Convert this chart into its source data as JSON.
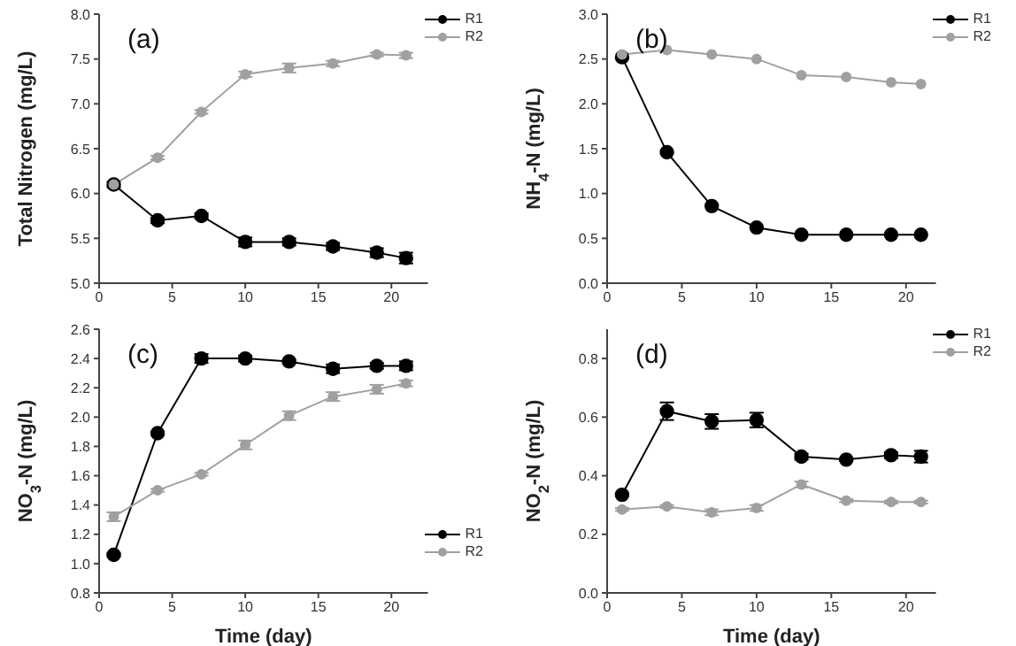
{
  "chart_data": [
    {
      "type": "line",
      "ylabel": "Total Nitrogen (mg/L)",
      "annotations": [
        "(a)"
      ],
      "x": [
        1,
        4,
        7,
        10,
        13,
        16,
        19,
        21
      ],
      "xlim": [
        0,
        22.5
      ],
      "xticks": [
        0,
        5,
        10,
        15,
        20
      ],
      "ylim": [
        5,
        8
      ],
      "yticks": [
        {
          "value": 5,
          "label": "5.0"
        },
        {
          "value": 5.5,
          "label": "5.5"
        },
        {
          "value": 6,
          "label": "6.0"
        },
        {
          "value": 6.5,
          "label": "6.5"
        },
        {
          "value": 7,
          "label": "7.0"
        },
        {
          "value": 7.5,
          "label": "7.5"
        },
        {
          "value": 8,
          "label": "8.0"
        }
      ],
      "legend": "top right",
      "marker": "circle",
      "series": [
        {
          "name": "R1",
          "color": "#000000",
          "values": [
            6.1,
            5.7,
            5.75,
            5.46,
            5.46,
            5.41,
            5.34,
            5.28
          ],
          "errors": [
            0.03,
            0.03,
            0.03,
            0.05,
            0.04,
            0.04,
            0.05,
            0.06
          ]
        },
        {
          "name": "R2",
          "color": "#a0a0a0",
          "values": [
            6.1,
            6.4,
            6.91,
            7.33,
            7.4,
            7.45,
            7.55,
            7.54
          ],
          "errors": [
            0.03,
            0.02,
            0.02,
            0.03,
            0.05,
            0.03,
            0.02,
            0.03
          ]
        }
      ]
    },
    {
      "type": "line",
      "ylabel": "NH$_{4}$-N (mg/L)",
      "annotations": [
        "(b)"
      ],
      "x": [
        1,
        4,
        7,
        10,
        13,
        16,
        19,
        21
      ],
      "xlim": [
        0,
        22
      ],
      "xticks": [
        0,
        5,
        10,
        15,
        20
      ],
      "ylim": [
        0,
        3
      ],
      "yticks": [
        {
          "value": 0,
          "label": "0.0"
        },
        {
          "value": 0.5,
          "label": "0.5"
        },
        {
          "value": 1,
          "label": "1.0"
        },
        {
          "value": 1.5,
          "label": "1.5"
        },
        {
          "value": 2,
          "label": "2.0"
        },
        {
          "value": 2.5,
          "label": "2.5"
        },
        {
          "value": 3,
          "label": "3.0"
        }
      ],
      "legend": "top right",
      "marker": "circle",
      "series": [
        {
          "name": "R1",
          "color": "#000000",
          "values": [
            2.52,
            1.46,
            0.86,
            0.62,
            0.54,
            0.54,
            0.54,
            0.54
          ]
        },
        {
          "name": "R2",
          "color": "#a0a0a0",
          "values": [
            2.55,
            2.6,
            2.55,
            2.5,
            2.32,
            2.3,
            2.24,
            2.22
          ]
        }
      ]
    },
    {
      "type": "line",
      "xlabel": "Time (day)",
      "ylabel": "NO$_{3}$-N (mg/L)",
      "annotations": [
        "(c)"
      ],
      "x": [
        1,
        4,
        7,
        10,
        13,
        16,
        19,
        21
      ],
      "xlim": [
        0,
        22.5
      ],
      "xticks": [
        0,
        5,
        10,
        15,
        20
      ],
      "ylim": [
        0.8,
        2.6
      ],
      "yticks": [
        {
          "value": 0.8,
          "label": "0.8"
        },
        {
          "value": 1,
          "label": "1.0"
        },
        {
          "value": 1.2,
          "label": "1.2"
        },
        {
          "value": 1.4,
          "label": "1.4"
        },
        {
          "value": 1.6,
          "label": "1.6"
        },
        {
          "value": 1.8,
          "label": "1.8"
        },
        {
          "value": 2,
          "label": "2.0"
        },
        {
          "value": 2.2,
          "label": "2.2"
        },
        {
          "value": 2.4,
          "label": "2.4"
        },
        {
          "value": 2.6,
          "label": "2.6"
        }
      ],
      "legend": "bottom right",
      "marker": "circle",
      "series": [
        {
          "name": "R1",
          "color": "#000000",
          "values": [
            1.06,
            1.89,
            2.4,
            2.4,
            2.38,
            2.33,
            2.35,
            2.35
          ],
          "errors": [
            0.01,
            0.01,
            0.03,
            0.02,
            0.01,
            0.03,
            0.02,
            0.03
          ]
        },
        {
          "name": "R2",
          "color": "#a0a0a0",
          "values": [
            1.32,
            1.5,
            1.61,
            1.81,
            2.01,
            2.14,
            2.19,
            2.23
          ],
          "errors": [
            0.03,
            0.01,
            0.01,
            0.03,
            0.03,
            0.03,
            0.03,
            0.02
          ]
        }
      ]
    },
    {
      "type": "line",
      "xlabel": "Time (day)",
      "ylabel": "NO$_{2}$-N (mg/L)",
      "annotations": [
        "(d)"
      ],
      "x": [
        1,
        4,
        7,
        10,
        13,
        16,
        19,
        21
      ],
      "xlim": [
        0,
        22
      ],
      "xticks": [
        0,
        5,
        10,
        15,
        20
      ],
      "ylim": [
        0,
        0.9
      ],
      "yticks": [
        {
          "value": 0,
          "label": "0.0"
        },
        {
          "value": 0.2,
          "label": "0.2"
        },
        {
          "value": 0.4,
          "label": "0.4"
        },
        {
          "value": 0.6,
          "label": "0.6"
        },
        {
          "value": 0.8,
          "label": "0.8"
        }
      ],
      "legend": "top right",
      "marker": "circle",
      "series": [
        {
          "name": "R1",
          "color": "#000000",
          "values": [
            0.335,
            0.62,
            0.585,
            0.59,
            0.465,
            0.455,
            0.47,
            0.465
          ],
          "errors": [
            0.005,
            0.03,
            0.025,
            0.025,
            0.01,
            0.005,
            0.01,
            0.02
          ]
        },
        {
          "name": "R2",
          "color": "#a0a0a0",
          "values": [
            0.285,
            0.295,
            0.275,
            0.29,
            0.37,
            0.315,
            0.31,
            0.31
          ],
          "errors": [
            0.005,
            0.005,
            0.01,
            0.01,
            0.01,
            0.005,
            0.005,
            0.005
          ]
        }
      ]
    }
  ]
}
